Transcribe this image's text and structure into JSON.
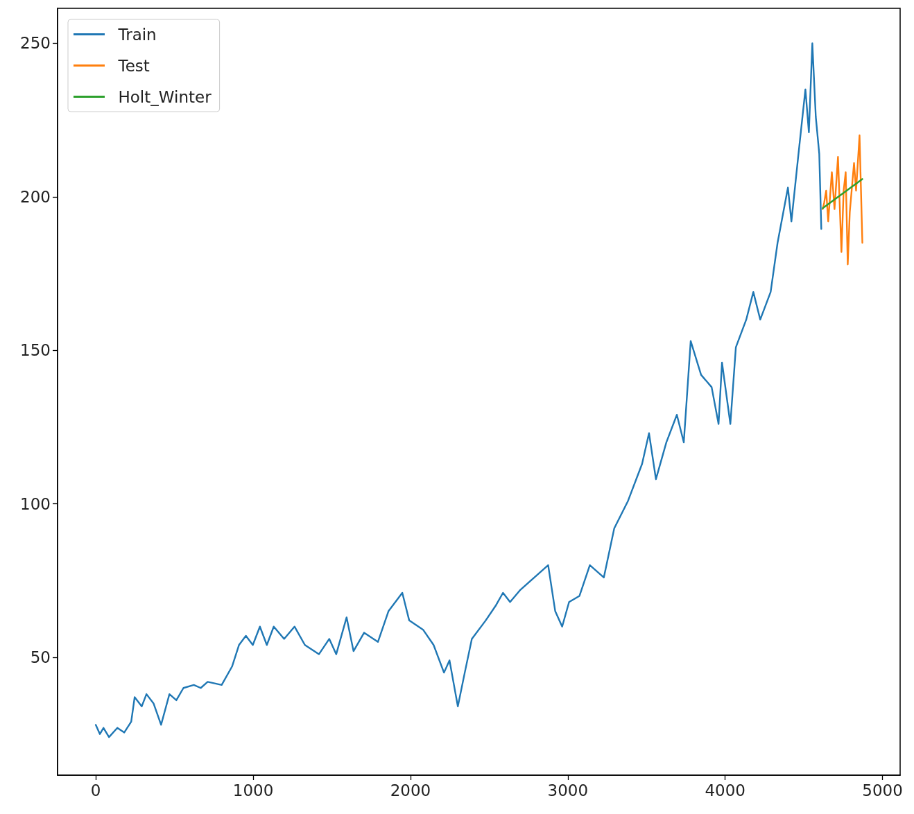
{
  "chart_data": {
    "type": "line",
    "legend": "top left",
    "grid": false,
    "marker": "none",
    "line_style": "solid",
    "xlim": [
      -243,
      5112
    ],
    "ylim": [
      11.6,
      261.4
    ],
    "xticks": [
      0,
      1000,
      2000,
      3000,
      4000,
      5000
    ],
    "yticks": [
      50,
      100,
      150,
      200,
      250
    ],
    "series": [
      {
        "name": "Train",
        "color": "#1f77b4",
        "x": [
          0,
          26,
          49,
          84,
          137,
          181,
          225,
          247,
          292,
          322,
          367,
          415,
          468,
          512,
          557,
          623,
          667,
          711,
          800,
          866,
          910,
          954,
          998,
          1043,
          1087,
          1131,
          1197,
          1263,
          1329,
          1418,
          1484,
          1528,
          1594,
          1638,
          1705,
          1793,
          1860,
          1948,
          1992,
          2080,
          2147,
          2213,
          2248,
          2301,
          2345,
          2390,
          2478,
          2544,
          2588,
          2633,
          2699,
          2787,
          2875,
          2920,
          2964,
          3008,
          3074,
          3140,
          3229,
          3295,
          3383,
          3472,
          3516,
          3560,
          3626,
          3693,
          3737,
          3781,
          3847,
          3914,
          3958,
          3980,
          4033,
          4068,
          4134,
          4179,
          4223,
          4289,
          4333,
          4399,
          4421,
          4466,
          4510,
          4532,
          4554,
          4576,
          4598,
          4611
        ],
        "values": [
          28,
          25,
          27,
          24,
          27,
          25.5,
          29,
          37,
          34,
          38,
          35,
          28,
          38,
          36,
          40,
          41,
          40,
          42,
          41,
          47,
          54,
          57,
          54,
          60,
          54,
          60,
          56,
          60,
          54,
          51,
          56,
          51,
          63,
          52,
          58,
          55,
          65,
          71,
          62,
          59,
          54,
          45,
          49,
          34,
          45,
          56,
          62,
          67,
          71,
          68,
          72,
          76,
          80,
          65,
          60,
          68,
          70,
          80,
          76,
          92,
          101,
          113,
          123,
          108,
          120,
          129,
          120,
          153,
          142,
          138,
          126,
          146,
          126,
          151,
          160,
          169,
          160,
          169,
          185,
          203,
          192,
          214,
          235,
          221,
          250,
          226,
          214,
          189.5
        ]
      },
      {
        "name": "Test",
        "color": "#ff7f0e",
        "x": [
          4620,
          4629,
          4642,
          4655,
          4678,
          4695,
          4717,
          4739,
          4753,
          4766,
          4779,
          4792,
          4819,
          4832,
          4854,
          4872
        ],
        "values": [
          196,
          198,
          202,
          192,
          208,
          196,
          213,
          182,
          202,
          208,
          178,
          195,
          211,
          202,
          220,
          185
        ]
      },
      {
        "name": "Holt_Winter",
        "color": "#2ca02c",
        "x": [
          4620,
          4872
        ],
        "values": [
          196.3,
          205.8
        ]
      }
    ]
  }
}
